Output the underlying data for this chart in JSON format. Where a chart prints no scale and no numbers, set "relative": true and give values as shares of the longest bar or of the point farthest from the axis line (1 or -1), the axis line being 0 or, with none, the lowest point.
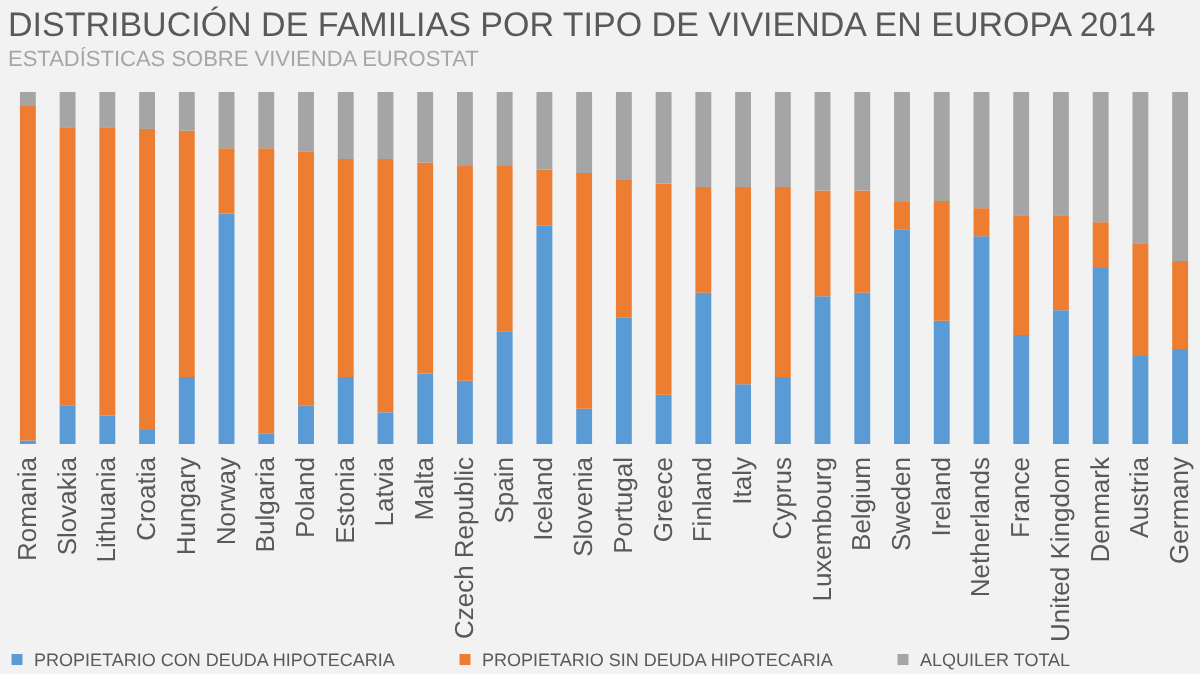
{
  "chart_data": {
    "type": "bar",
    "title": "DISTRIBUCIÓN DE FAMILIAS POR TIPO DE VIVIENDA EN EUROPA 2014",
    "subtitle": "ESTADÍSTICAS SOBRE VIVIENDA EUROSTAT",
    "stacked": true,
    "relative": true,
    "legend": "bottom",
    "categories": [
      "Romania",
      "Slovakia",
      "Lithuania",
      "Croatia",
      "Hungary",
      "Norway",
      "Bulgaria",
      "Poland",
      "Estonia",
      "Latvia",
      "Malta",
      "Czech Republic",
      "Spain",
      "Iceland",
      "Slovenia",
      "Portugal",
      "Greece",
      "Finland",
      "Italy",
      "Cyprus",
      "Luxembourg",
      "Belgium",
      "Sweden",
      "Ireland",
      "Netherlands",
      "France",
      "United Kingdom",
      "Denmark",
      "Austria",
      "Germany"
    ],
    "series": [
      {
        "name": "PROPIETARIO CON DEUDA HIPOTECARIA",
        "color": "#5b9bd5",
        "values": [
          0.01,
          0.11,
          0.08,
          0.04,
          0.19,
          0.655,
          0.03,
          0.11,
          0.19,
          0.09,
          0.2,
          0.18,
          0.32,
          0.62,
          0.1,
          0.36,
          0.14,
          0.43,
          0.17,
          0.19,
          0.42,
          0.43,
          0.61,
          0.35,
          0.59,
          0.31,
          0.38,
          0.5,
          0.25,
          0.27
        ]
      },
      {
        "name": "PROPIETARIO SIN DEUDA HIPOTECARIA",
        "color": "#ed7d31",
        "values": [
          0.95,
          0.79,
          0.82,
          0.855,
          0.7,
          0.185,
          0.81,
          0.72,
          0.62,
          0.72,
          0.6,
          0.61,
          0.47,
          0.16,
          0.67,
          0.39,
          0.6,
          0.3,
          0.56,
          0.54,
          0.3,
          0.29,
          0.08,
          0.34,
          0.08,
          0.34,
          0.27,
          0.13,
          0.32,
          0.25
        ]
      },
      {
        "name": "ALQUILER TOTAL",
        "color": "#a5a5a5",
        "values": [
          0.04,
          0.1,
          0.1,
          0.105,
          0.11,
          0.16,
          0.16,
          0.17,
          0.19,
          0.19,
          0.2,
          0.21,
          0.21,
          0.22,
          0.23,
          0.25,
          0.26,
          0.27,
          0.27,
          0.27,
          0.28,
          0.28,
          0.31,
          0.31,
          0.33,
          0.35,
          0.35,
          0.37,
          0.43,
          0.48
        ]
      }
    ]
  }
}
